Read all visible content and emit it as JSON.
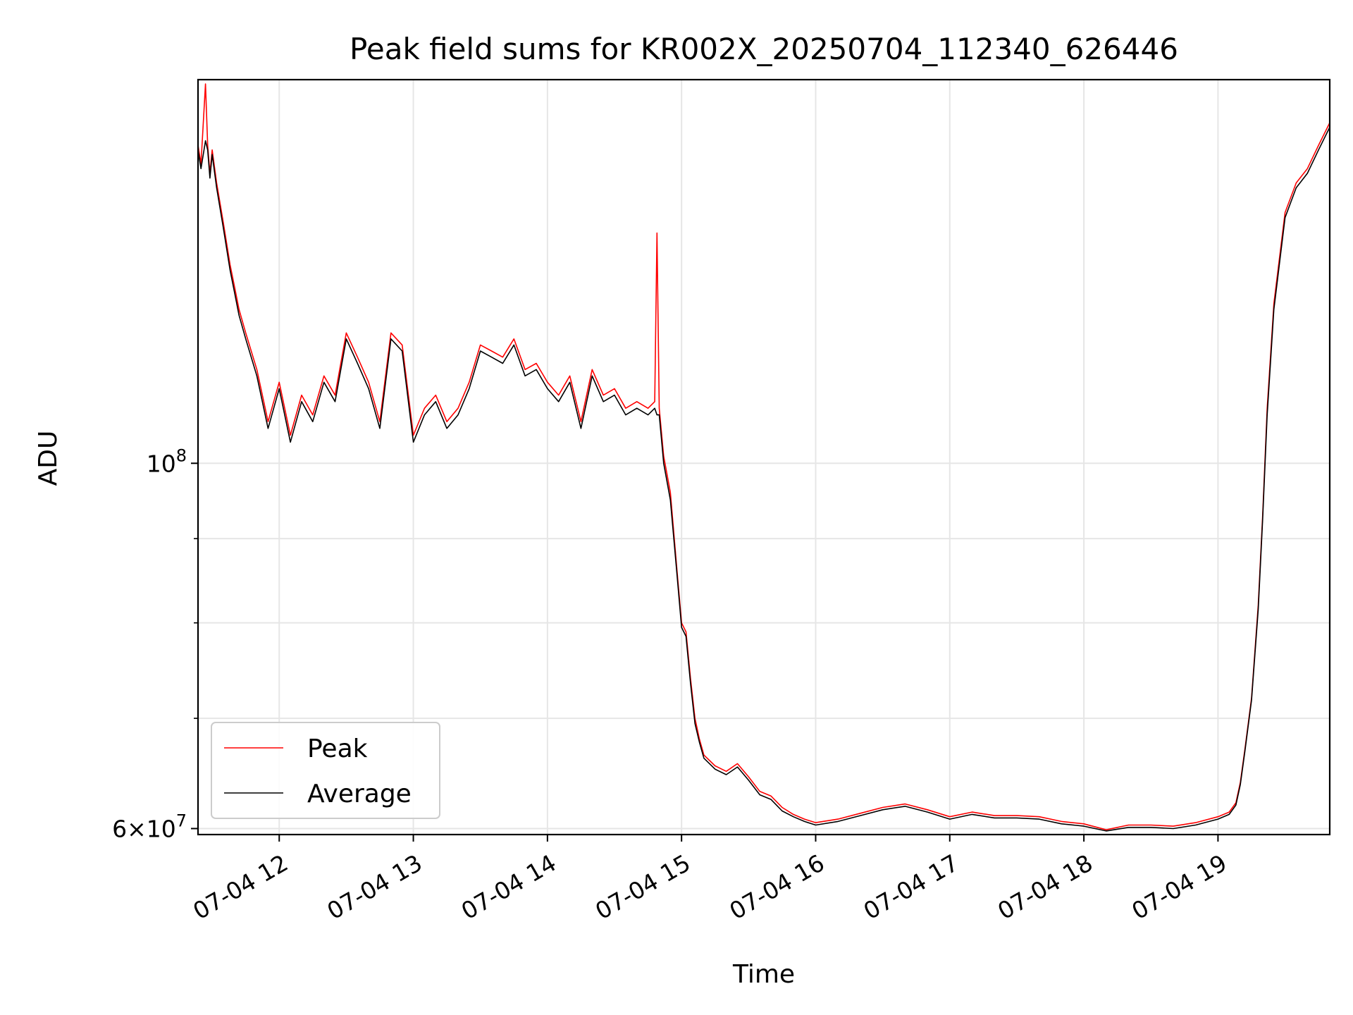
{
  "chart_data": {
    "type": "line",
    "title": "Peak field sums for KR002X_20250704_112340_626446",
    "xlabel": "Time",
    "ylabel": "ADU",
    "y_scale": "log",
    "ylim": [
      59500000,
      171000000
    ],
    "x_range": [
      "2025-07-04 11:23:40",
      "2025-07-04 19:50:00"
    ],
    "x_ticks": [
      "07-04 12",
      "07-04 13",
      "07-04 14",
      "07-04 15",
      "07-04 16",
      "07-04 17",
      "07-04 18",
      "07-04 19"
    ],
    "y_ticks": [
      {
        "value": 100000000,
        "mantissa": "",
        "base": "10",
        "exp": "8"
      },
      {
        "value": 60000000,
        "mantissa": "6",
        "base": "10",
        "exp": "7"
      }
    ],
    "y_minor_ticks": [
      70000000,
      80000000,
      90000000
    ],
    "grid": true,
    "legend": {
      "position": "lower left"
    },
    "series": [
      {
        "name": "Peak",
        "color": "#ff0000",
        "x": [
          "2025-07-04 11:23:40",
          "2025-07-04 11:25",
          "2025-07-04 11:27",
          "2025-07-04 11:28",
          "2025-07-04 11:29",
          "2025-07-04 11:30",
          "2025-07-04 11:32",
          "2025-07-04 11:35",
          "2025-07-04 11:38",
          "2025-07-04 11:40",
          "2025-07-04 11:42",
          "2025-07-04 11:45",
          "2025-07-04 11:50",
          "2025-07-04 11:55",
          "2025-07-04 12:00",
          "2025-07-04 12:05",
          "2025-07-04 12:10",
          "2025-07-04 12:15",
          "2025-07-04 12:20",
          "2025-07-04 12:25",
          "2025-07-04 12:30",
          "2025-07-04 12:35",
          "2025-07-04 12:40",
          "2025-07-04 12:45",
          "2025-07-04 12:50",
          "2025-07-04 12:55",
          "2025-07-04 13:00",
          "2025-07-04 13:05",
          "2025-07-04 13:10",
          "2025-07-04 13:15",
          "2025-07-04 13:20",
          "2025-07-04 13:25",
          "2025-07-04 13:30",
          "2025-07-04 13:35",
          "2025-07-04 13:40",
          "2025-07-04 13:45",
          "2025-07-04 13:50",
          "2025-07-04 13:55",
          "2025-07-04 14:00",
          "2025-07-04 14:05",
          "2025-07-04 14:10",
          "2025-07-04 14:15",
          "2025-07-04 14:20",
          "2025-07-04 14:25",
          "2025-07-04 14:30",
          "2025-07-04 14:35",
          "2025-07-04 14:40",
          "2025-07-04 14:45",
          "2025-07-04 14:48",
          "2025-07-04 14:49",
          "2025-07-04 14:50",
          "2025-07-04 14:52",
          "2025-07-04 14:55",
          "2025-07-04 14:58",
          "2025-07-04 15:00",
          "2025-07-04 15:02",
          "2025-07-04 15:04",
          "2025-07-04 15:06",
          "2025-07-04 15:08",
          "2025-07-04 15:10",
          "2025-07-04 15:15",
          "2025-07-04 15:20",
          "2025-07-04 15:25",
          "2025-07-04 15:30",
          "2025-07-04 15:35",
          "2025-07-04 15:40",
          "2025-07-04 15:45",
          "2025-07-04 15:50",
          "2025-07-04 15:55",
          "2025-07-04 16:00",
          "2025-07-04 16:10",
          "2025-07-04 16:20",
          "2025-07-04 16:30",
          "2025-07-04 16:40",
          "2025-07-04 16:50",
          "2025-07-04 17:00",
          "2025-07-04 17:10",
          "2025-07-04 17:20",
          "2025-07-04 17:30",
          "2025-07-04 17:40",
          "2025-07-04 17:50",
          "2025-07-04 18:00",
          "2025-07-04 18:10",
          "2025-07-04 18:20",
          "2025-07-04 18:30",
          "2025-07-04 18:40",
          "2025-07-04 18:50",
          "2025-07-04 19:00",
          "2025-07-04 19:05",
          "2025-07-04 19:08",
          "2025-07-04 19:10",
          "2025-07-04 19:12",
          "2025-07-04 19:15",
          "2025-07-04 19:18",
          "2025-07-04 19:20",
          "2025-07-04 19:22",
          "2025-07-04 19:25",
          "2025-07-04 19:30",
          "2025-07-04 19:35",
          "2025-07-04 19:40",
          "2025-07-04 19:45",
          "2025-07-04 19:50"
        ],
        "y": [
          156000000,
          152000000,
          170000000,
          156000000,
          150000000,
          155000000,
          148000000,
          140000000,
          132000000,
          128000000,
          124000000,
          120000000,
          114000000,
          106000000,
          112000000,
          104000000,
          110000000,
          107000000,
          113000000,
          110000000,
          120000000,
          116000000,
          112000000,
          106000000,
          120000000,
          118000000,
          104000000,
          108000000,
          110000000,
          106000000,
          108000000,
          112000000,
          118000000,
          117000000,
          116000000,
          119000000,
          114000000,
          115000000,
          112000000,
          110000000,
          113000000,
          106000000,
          114000000,
          110000000,
          111000000,
          108000000,
          109000000,
          108000000,
          109000000,
          138000000,
          108000000,
          101000000,
          96000000,
          86000000,
          80000000,
          79000000,
          74000000,
          70000000,
          68000000,
          66500000,
          65500000,
          65000000,
          65700000,
          64500000,
          63200000,
          62800000,
          61800000,
          61200000,
          60800000,
          60500000,
          60800000,
          61300000,
          61800000,
          62100000,
          61600000,
          61000000,
          61400000,
          61100000,
          61100000,
          61000000,
          60600000,
          60400000,
          59900000,
          60300000,
          60300000,
          60200000,
          60500000,
          61000000,
          61400000,
          62200000,
          64000000,
          67000000,
          72000000,
          82000000,
          93000000,
          108000000,
          125000000,
          142000000,
          148000000,
          151000000,
          156000000,
          161000000
        ]
      },
      {
        "name": "Average",
        "color": "#000000",
        "x": [
          "2025-07-04 11:23:40",
          "2025-07-04 11:25",
          "2025-07-04 11:27",
          "2025-07-04 11:28",
          "2025-07-04 11:29",
          "2025-07-04 11:30",
          "2025-07-04 11:32",
          "2025-07-04 11:35",
          "2025-07-04 11:38",
          "2025-07-04 11:40",
          "2025-07-04 11:42",
          "2025-07-04 11:45",
          "2025-07-04 11:50",
          "2025-07-04 11:55",
          "2025-07-04 12:00",
          "2025-07-04 12:05",
          "2025-07-04 12:10",
          "2025-07-04 12:15",
          "2025-07-04 12:20",
          "2025-07-04 12:25",
          "2025-07-04 12:30",
          "2025-07-04 12:35",
          "2025-07-04 12:40",
          "2025-07-04 12:45",
          "2025-07-04 12:50",
          "2025-07-04 12:55",
          "2025-07-04 13:00",
          "2025-07-04 13:05",
          "2025-07-04 13:10",
          "2025-07-04 13:15",
          "2025-07-04 13:20",
          "2025-07-04 13:25",
          "2025-07-04 13:30",
          "2025-07-04 13:35",
          "2025-07-04 13:40",
          "2025-07-04 13:45",
          "2025-07-04 13:50",
          "2025-07-04 13:55",
          "2025-07-04 14:00",
          "2025-07-04 14:05",
          "2025-07-04 14:10",
          "2025-07-04 14:15",
          "2025-07-04 14:20",
          "2025-07-04 14:25",
          "2025-07-04 14:30",
          "2025-07-04 14:35",
          "2025-07-04 14:40",
          "2025-07-04 14:45",
          "2025-07-04 14:48",
          "2025-07-04 14:49",
          "2025-07-04 14:50",
          "2025-07-04 14:52",
          "2025-07-04 14:55",
          "2025-07-04 14:58",
          "2025-07-04 15:00",
          "2025-07-04 15:02",
          "2025-07-04 15:04",
          "2025-07-04 15:06",
          "2025-07-04 15:08",
          "2025-07-04 15:10",
          "2025-07-04 15:15",
          "2025-07-04 15:20",
          "2025-07-04 15:25",
          "2025-07-04 15:30",
          "2025-07-04 15:35",
          "2025-07-04 15:40",
          "2025-07-04 15:45",
          "2025-07-04 15:50",
          "2025-07-04 15:55",
          "2025-07-04 16:00",
          "2025-07-04 16:10",
          "2025-07-04 16:20",
          "2025-07-04 16:30",
          "2025-07-04 16:40",
          "2025-07-04 16:50",
          "2025-07-04 17:00",
          "2025-07-04 17:10",
          "2025-07-04 17:20",
          "2025-07-04 17:30",
          "2025-07-04 17:40",
          "2025-07-04 17:50",
          "2025-07-04 18:00",
          "2025-07-04 18:10",
          "2025-07-04 18:20",
          "2025-07-04 18:30",
          "2025-07-04 18:40",
          "2025-07-04 18:50",
          "2025-07-04 19:00",
          "2025-07-04 19:05",
          "2025-07-04 19:08",
          "2025-07-04 19:10",
          "2025-07-04 19:12",
          "2025-07-04 19:15",
          "2025-07-04 19:18",
          "2025-07-04 19:20",
          "2025-07-04 19:22",
          "2025-07-04 19:25",
          "2025-07-04 19:30",
          "2025-07-04 19:35",
          "2025-07-04 19:40",
          "2025-07-04 19:45",
          "2025-07-04 19:50"
        ],
        "y": [
          155000000,
          151000000,
          157000000,
          155000000,
          149000000,
          154000000,
          147000000,
          139000000,
          131000000,
          127000000,
          123000000,
          119000000,
          113000000,
          105000000,
          111000000,
          103000000,
          109000000,
          106000000,
          112000000,
          109000000,
          119000000,
          115000000,
          111000000,
          105000000,
          119000000,
          117000000,
          103000000,
          107000000,
          109000000,
          105000000,
          107000000,
          111000000,
          117000000,
          116000000,
          115000000,
          118000000,
          113000000,
          114000000,
          111000000,
          109000000,
          112000000,
          105000000,
          113000000,
          109000000,
          110000000,
          107000000,
          108000000,
          107000000,
          108000000,
          107000000,
          107000000,
          100000000,
          95000000,
          85500000,
          79500000,
          78500000,
          73500000,
          69500000,
          67700000,
          66200000,
          65200000,
          64700000,
          65400000,
          64200000,
          62900000,
          62500000,
          61500000,
          61000000,
          60600000,
          60300000,
          60600000,
          61100000,
          61600000,
          61900000,
          61400000,
          60800000,
          61200000,
          60900000,
          60900000,
          60800000,
          60400000,
          60200000,
          59800000,
          60100000,
          60100000,
          60000000,
          60300000,
          60800000,
          61200000,
          62000000,
          63800000,
          66800000,
          71800000,
          81500000,
          92500000,
          107000000,
          124000000,
          141000000,
          147000000,
          150000000,
          155000000,
          160000000
        ]
      }
    ]
  }
}
